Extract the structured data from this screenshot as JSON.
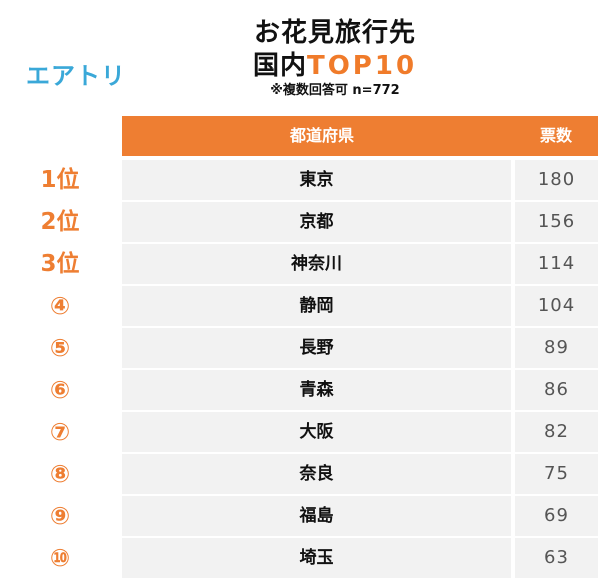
{
  "logo": "エアトリ",
  "title": {
    "line1": "お花見旅行先",
    "line2_prefix": "国内",
    "line2_accent": "TOP10",
    "note": "※複数回答可 n=772"
  },
  "table": {
    "header": {
      "prefecture": "都道府県",
      "votes": "票数"
    },
    "rows": [
      {
        "rank": "1位",
        "prefecture": "東京",
        "votes": "180"
      },
      {
        "rank": "2位",
        "prefecture": "京都",
        "votes": "156"
      },
      {
        "rank": "3位",
        "prefecture": "神奈川",
        "votes": "114"
      },
      {
        "rank": "④",
        "prefecture": "静岡",
        "votes": "104"
      },
      {
        "rank": "⑤",
        "prefecture": "長野",
        "votes": "89"
      },
      {
        "rank": "⑥",
        "prefecture": "青森",
        "votes": "86"
      },
      {
        "rank": "⑦",
        "prefecture": "大阪",
        "votes": "82"
      },
      {
        "rank": "⑧",
        "prefecture": "奈良",
        "votes": "75"
      },
      {
        "rank": "⑨",
        "prefecture": "福島",
        "votes": "69"
      },
      {
        "rank": "⑩",
        "prefecture": "埼玉",
        "votes": "63"
      }
    ]
  },
  "colors": {
    "accent": "#ee7e32",
    "logo": "#3aa8d8",
    "row_bg": "#f2f2f2"
  }
}
